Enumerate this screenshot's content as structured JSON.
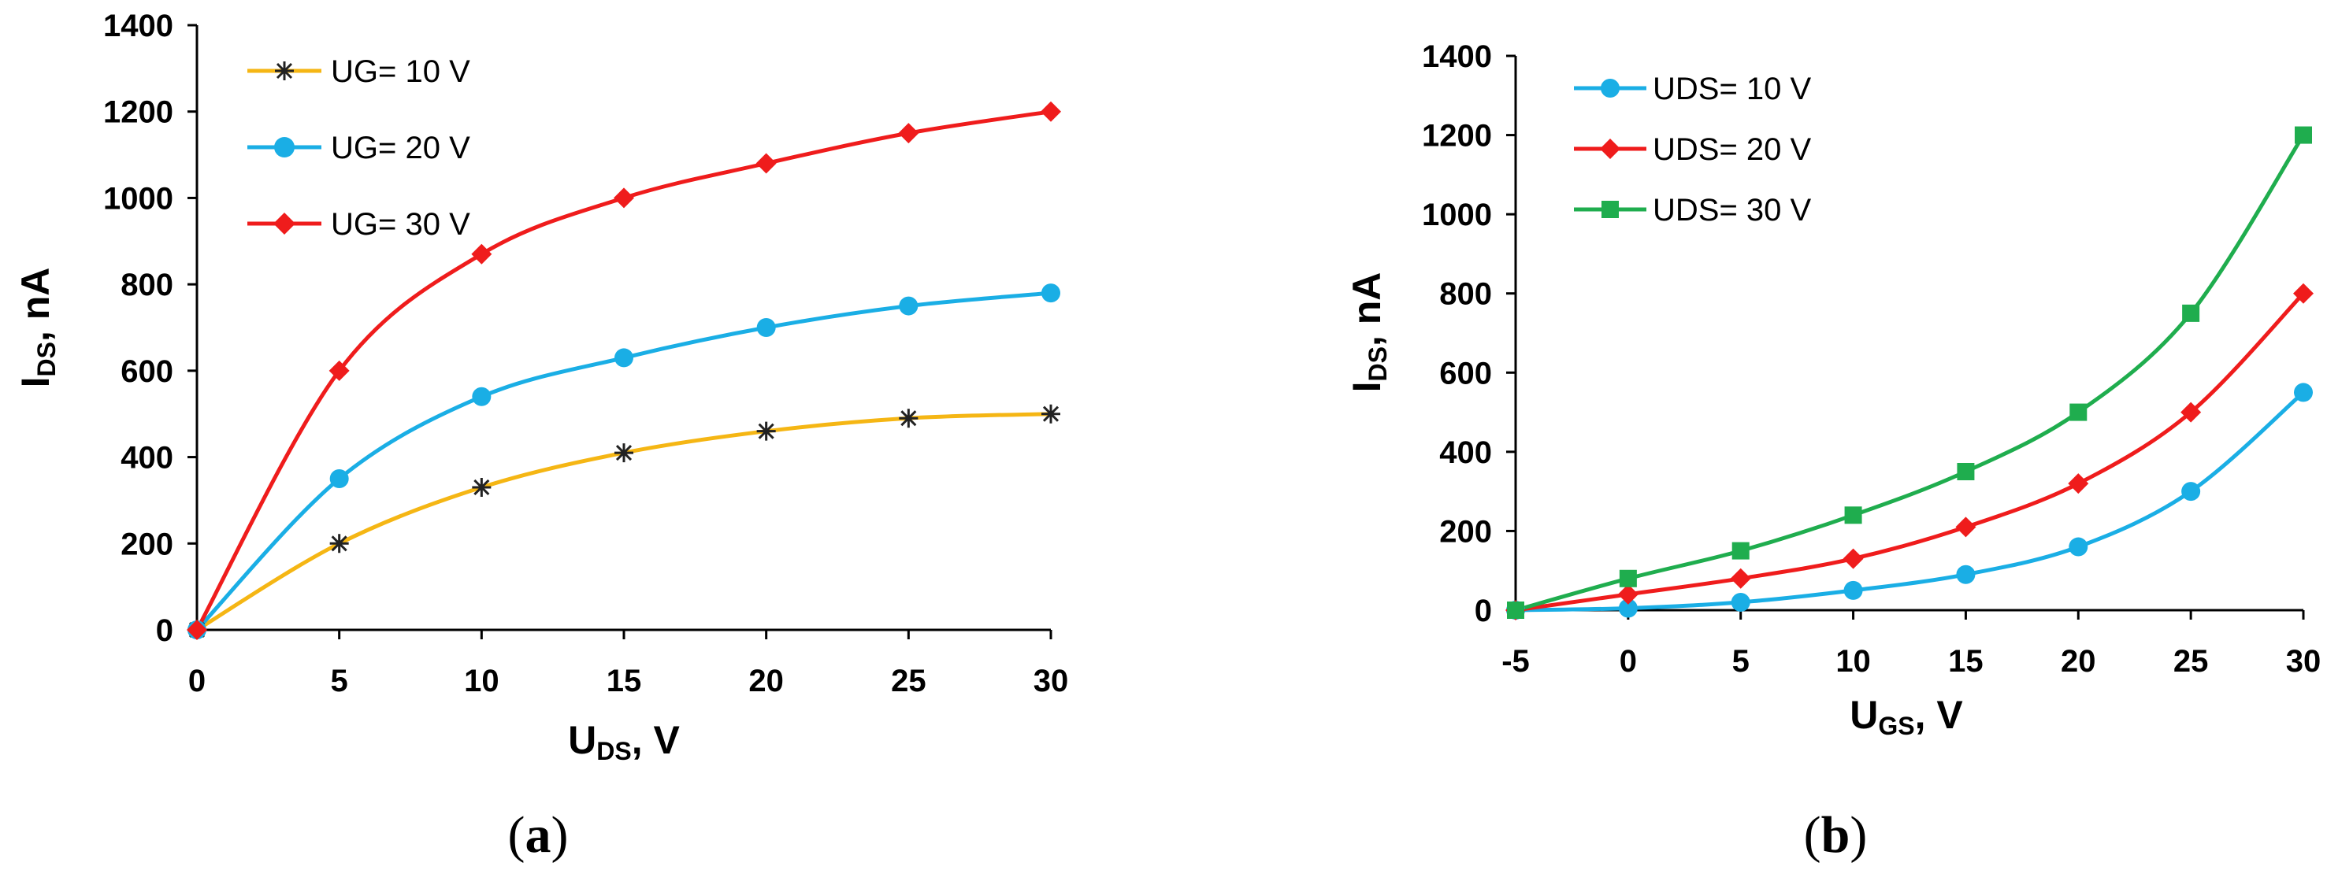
{
  "chart_data": [
    {
      "type": "line",
      "panel_label": {
        "open": "(",
        "letter": "a",
        "close": ")"
      },
      "xlabel": {
        "main": "U",
        "sub": "DS",
        "rest": ", V"
      },
      "ylabel": {
        "main": "I",
        "sub": "DS",
        "rest": ", nA"
      },
      "x": [
        0,
        5,
        10,
        15,
        20,
        25,
        30
      ],
      "xlim": [
        0,
        30
      ],
      "ylim": [
        0,
        1400
      ],
      "xticks": [
        "0",
        "5",
        "10",
        "15",
        "20",
        "25",
        "30"
      ],
      "yticks": [
        "0",
        "200",
        "400",
        "600",
        "800",
        "1000",
        "1200",
        "1400"
      ],
      "grid": false,
      "legend_position": "top-left",
      "series": [
        {
          "name": "UG= 10 V",
          "color": "#f5b614",
          "marker": "asterisk",
          "values": [
            0,
            200,
            330,
            410,
            460,
            490,
            500
          ]
        },
        {
          "name": "UG= 20 V",
          "color": "#1aaee5",
          "marker": "circle",
          "values": [
            0,
            350,
            540,
            630,
            700,
            750,
            780
          ]
        },
        {
          "name": "UG= 30 V",
          "color": "#ef1c1c",
          "marker": "diamond",
          "values": [
            0,
            600,
            870,
            1000,
            1080,
            1150,
            1200
          ]
        }
      ]
    },
    {
      "type": "line",
      "panel_label": {
        "open": "(",
        "letter": "b",
        "close": ")"
      },
      "xlabel": {
        "main": "U",
        "sub": "GS",
        "rest": ", V"
      },
      "ylabel": {
        "main": "I",
        "sub": "DS",
        "rest": ", nA"
      },
      "x": [
        -5,
        0,
        5,
        10,
        15,
        20,
        25,
        30
      ],
      "xlim": [
        -5,
        30
      ],
      "ylim": [
        0,
        1400
      ],
      "xticks": [
        "-5",
        "0",
        "5",
        "10",
        "15",
        "20",
        "25",
        "30"
      ],
      "yticks": [
        "0",
        "200",
        "400",
        "600",
        "800",
        "1000",
        "1200",
        "1400"
      ],
      "grid": false,
      "legend_position": "top-left",
      "series": [
        {
          "name": "UDS= 10 V",
          "color": "#1aaee5",
          "marker": "circle",
          "values": [
            0,
            5,
            20,
            50,
            90,
            160,
            300,
            550
          ]
        },
        {
          "name": "UDS= 20 V",
          "color": "#ef1c1c",
          "marker": "diamond",
          "values": [
            0,
            40,
            80,
            130,
            210,
            320,
            500,
            800
          ]
        },
        {
          "name": "UDS= 30 V",
          "color": "#1fad4e",
          "marker": "square",
          "values": [
            0,
            80,
            150,
            240,
            350,
            500,
            750,
            1200
          ]
        }
      ]
    }
  ]
}
